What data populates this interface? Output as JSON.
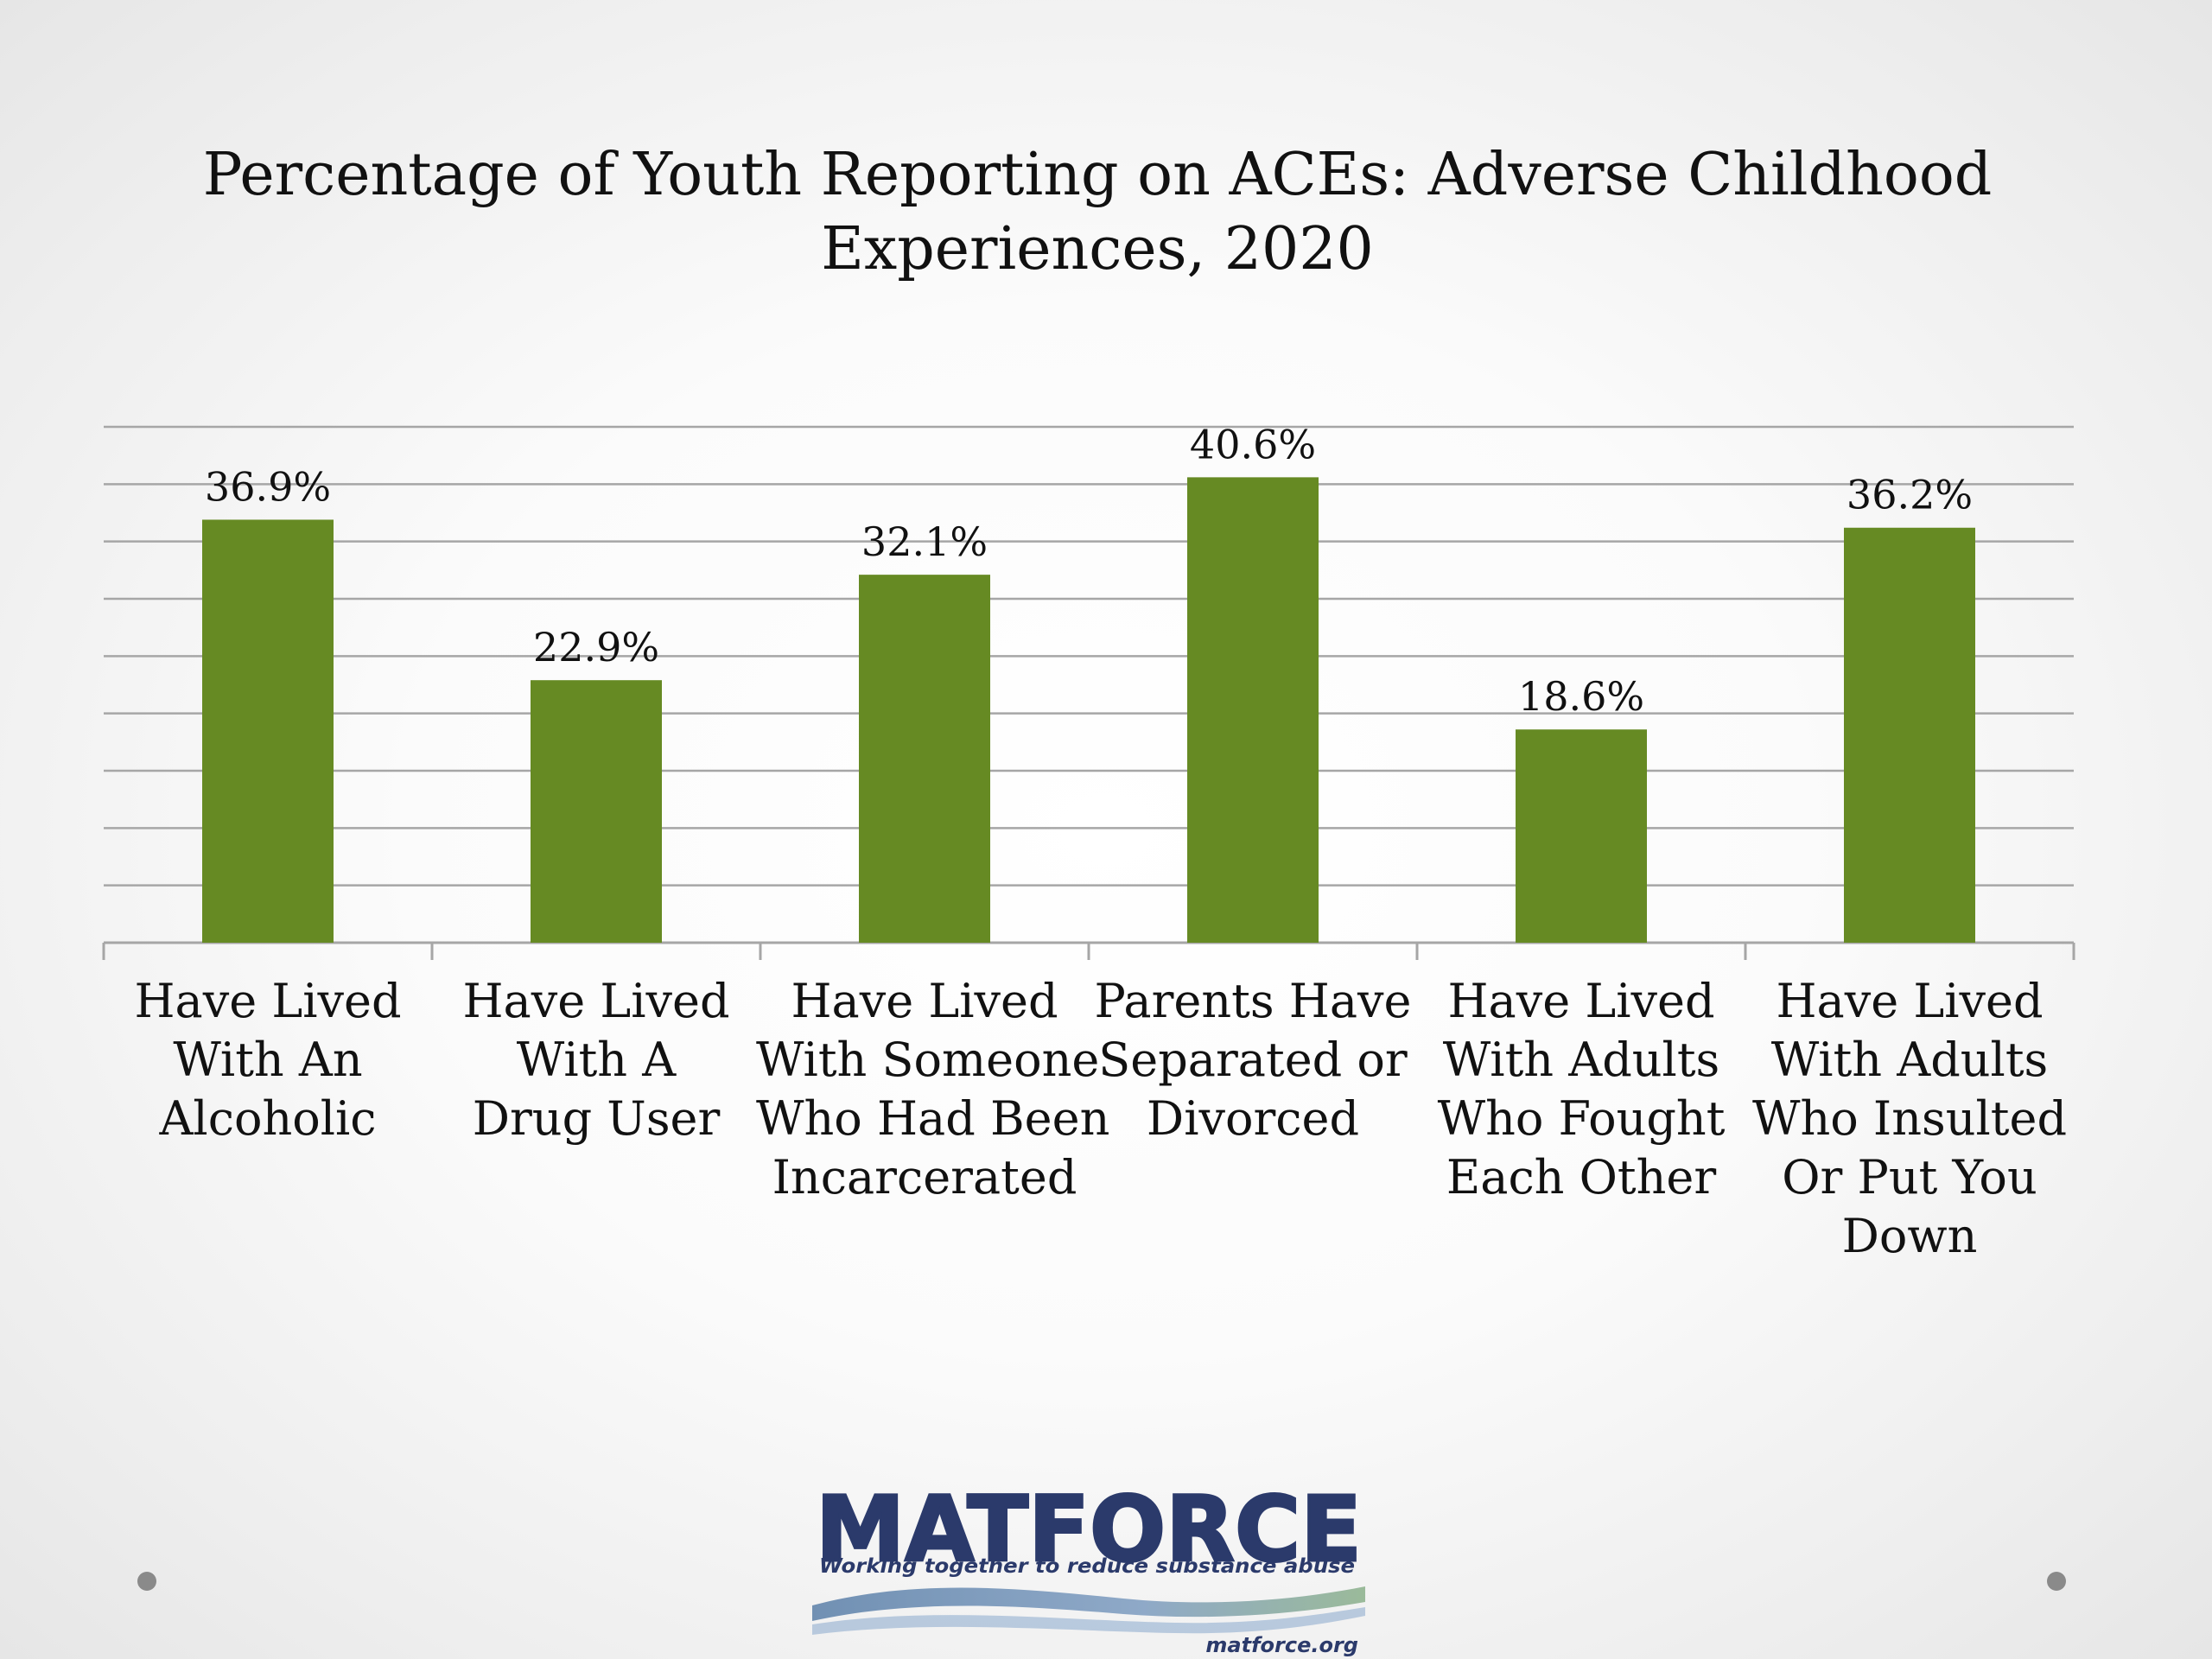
{
  "title_lines": [
    "Percentage of Youth Reporting on  ACEs:  Adverse Childhood",
    "Experiences, 2020"
  ],
  "chart_data": {
    "type": "bar",
    "title": "Percentage of Youth Reporting on  ACEs:  Adverse Childhood Experiences, 2020",
    "categories": [
      [
        "Have Lived",
        "With An",
        "Alcoholic"
      ],
      [
        "Have Lived",
        "With A",
        "Drug User"
      ],
      [
        "Have Lived",
        "With Someone",
        "Who Had Been",
        "Incarcerated"
      ],
      [
        "Parents Have",
        "Separated or",
        "Divorced"
      ],
      [
        "Have Lived",
        "With Adults",
        "Who Fought",
        "Each Other"
      ],
      [
        "Have Lived",
        "With Adults",
        "Who Insulted",
        "Or Put You",
        "Down"
      ]
    ],
    "values": [
      36.9,
      22.9,
      32.1,
      40.6,
      18.6,
      36.2
    ],
    "data_labels": [
      "36.9%",
      "22.9%",
      "32.1%",
      "40.6%",
      "18.6%",
      "36.2%"
    ],
    "ylim": [
      0,
      45
    ],
    "grid": true,
    "gridline_step": 5,
    "legend": "none",
    "xlabel": "",
    "ylabel": "",
    "bar_color": "#668a23"
  },
  "logo": {
    "name": "MATFORCE",
    "tagline": "Working together to reduce substance abuse",
    "url": "matforce.org"
  },
  "colors": {
    "bar": "#668a23",
    "grid": "#a6a6a6",
    "logo_text": "#2b3a6b"
  }
}
